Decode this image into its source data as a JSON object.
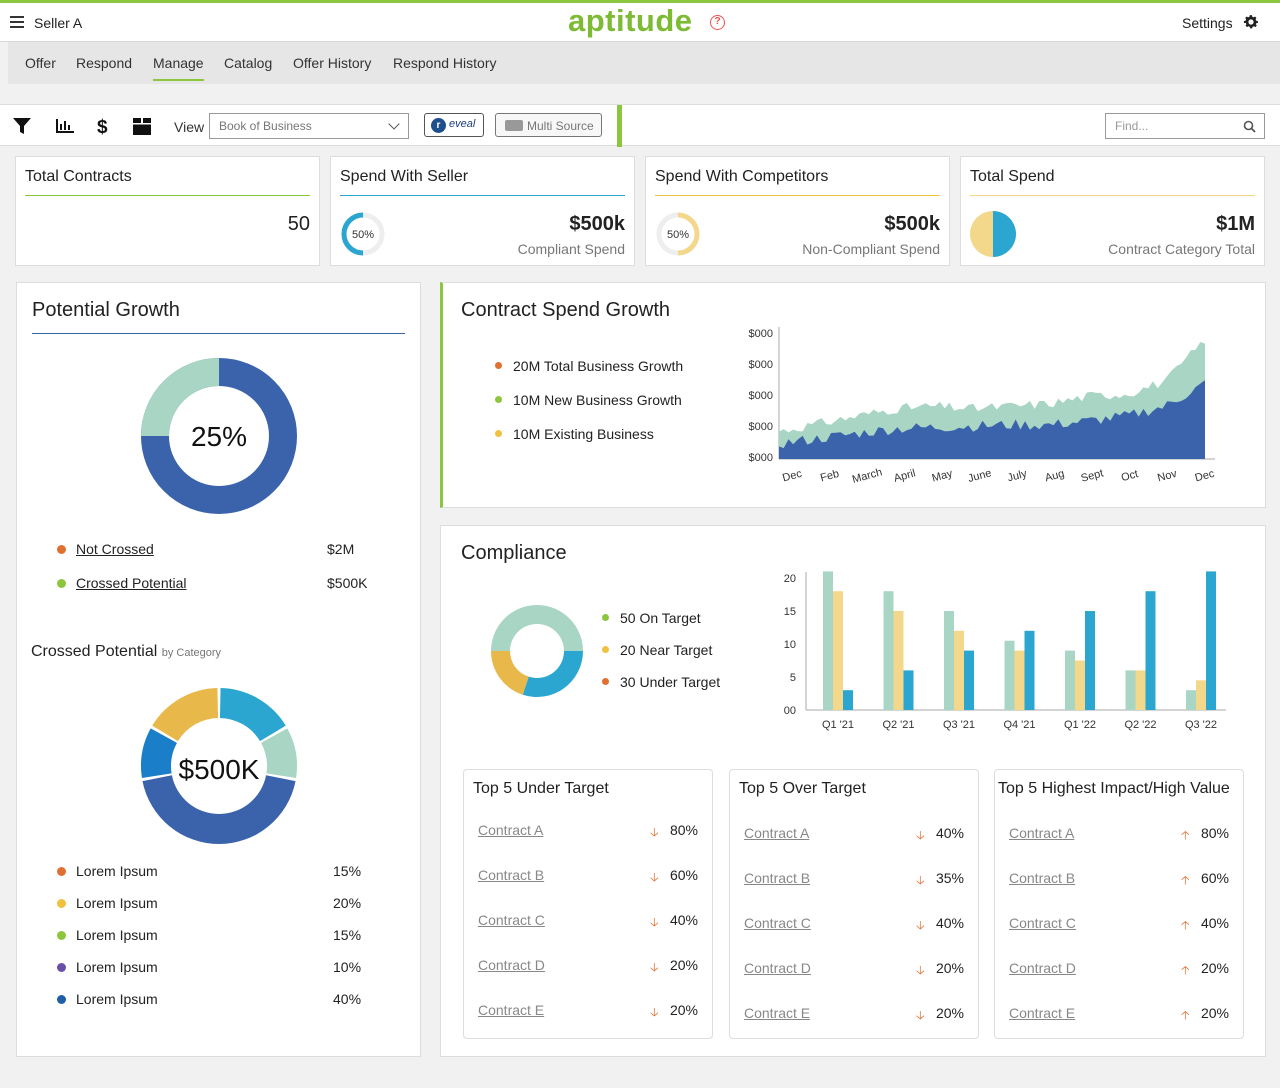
{
  "header": {
    "user": "Seller A",
    "logo": "aptitude",
    "help": "?",
    "settings": "Settings",
    "gear_icon": "gear-icon",
    "menu_icon": "hamburger-icon"
  },
  "nav": {
    "items": [
      "Offer",
      "Respond",
      "Manage",
      "Catalog",
      "Offer History",
      "Respond History"
    ],
    "active": "Manage"
  },
  "toolbar": {
    "icons": [
      "filter-icon",
      "bar-chart-icon",
      "dollar-icon",
      "box-icon"
    ],
    "view_label": "View",
    "view_value": "Book of Business",
    "reveal_label": "eveal",
    "reveal_mark": "r",
    "multi_source_label": "Multi Source",
    "find_placeholder": "Find..."
  },
  "kpis": {
    "total_contracts": {
      "title": "Total Contracts",
      "value": "50"
    },
    "spend_seller": {
      "title": "Spend With Seller",
      "value": "$500k",
      "sub": "Compliant Spend",
      "ring_label": "50%",
      "ring_pct": 50
    },
    "spend_competitors": {
      "title": "Spend With Competitors",
      "value": "$500k",
      "sub": "Non-Compliant Spend",
      "ring_label": "50%",
      "ring_pct": 50
    },
    "total_spend": {
      "title": "Total Spend",
      "value": "$1M",
      "sub": "Contract Category Total"
    }
  },
  "potential_growth": {
    "title": "Potential Growth",
    "center": "25%",
    "pct": 25,
    "legend": [
      {
        "label": "Not Crossed",
        "value": "$2M",
        "color": "#e07030"
      },
      {
        "label": "Crossed Potential",
        "value": "$500K",
        "color": "#8cc63f"
      }
    ],
    "sub_title": "Crossed Potential",
    "sub_title_small": "by Category",
    "sub_center": "$500K",
    "categories": [
      {
        "label": "Lorem Ipsum",
        "value": "15%",
        "color": "#e07030"
      },
      {
        "label": "Lorem Ipsum",
        "value": "20%",
        "color": "#f0c040"
      },
      {
        "label": "Lorem Ipsum",
        "value": "15%",
        "color": "#8cc63f"
      },
      {
        "label": "Lorem Ipsum",
        "value": "10%",
        "color": "#6a4fa8"
      },
      {
        "label": "Lorem Ipsum",
        "value": "40%",
        "color": "#1f5fa8"
      }
    ]
  },
  "contract_spend": {
    "title": "Contract Spend Growth",
    "legend": [
      {
        "label": "20M Total Business Growth",
        "color": "#e07030"
      },
      {
        "label": "10M New Business Growth",
        "color": "#8cc63f"
      },
      {
        "label": "10M Existing Business",
        "color": "#f0c040"
      }
    ],
    "y_ticks": [
      "$000",
      "$000",
      "$000",
      "$000",
      "$000"
    ],
    "x_ticks": [
      "Dec",
      "Feb",
      "March",
      "April",
      "May",
      "June",
      "July",
      "Aug",
      "Sept",
      "Oct",
      "Nov",
      "Dec"
    ]
  },
  "compliance": {
    "title": "Compliance",
    "legend": [
      {
        "label": "50 On Target",
        "color": "#8cc63f",
        "pct": 50
      },
      {
        "label": "20 Near Target",
        "color": "#f0c040",
        "pct": 20
      },
      {
        "label": "30 Under Target",
        "color": "#e07030",
        "pct": 30
      }
    ],
    "tables": [
      {
        "title": "Top 5 Under Target",
        "dir": "down",
        "rows": [
          {
            "name": "Contract A",
            "pct": "80%"
          },
          {
            "name": "Contract B",
            "pct": "60%"
          },
          {
            "name": "Contract C",
            "pct": "40%"
          },
          {
            "name": "Contract D",
            "pct": "20%"
          },
          {
            "name": "Contract E",
            "pct": "20%"
          }
        ]
      },
      {
        "title": "Top 5 Over Target",
        "dir": "down",
        "rows": [
          {
            "name": "Contract A",
            "pct": "40%"
          },
          {
            "name": "Contract B",
            "pct": "35%"
          },
          {
            "name": "Contract C",
            "pct": "40%"
          },
          {
            "name": "Contract D",
            "pct": "20%"
          },
          {
            "name": "Contract E",
            "pct": "20%"
          }
        ]
      },
      {
        "title": "Top 5 Highest Impact/High Value",
        "dir": "up",
        "rows": [
          {
            "name": "Contract A",
            "pct": "80%"
          },
          {
            "name": "Contract B",
            "pct": "60%"
          },
          {
            "name": "Contract C",
            "pct": "40%"
          },
          {
            "name": "Contract D",
            "pct": "20%"
          },
          {
            "name": "Contract E",
            "pct": "20%"
          }
        ]
      }
    ]
  },
  "chart_data": [
    {
      "type": "bar",
      "categories": [
        "Q1 '21",
        "Q2 '21",
        "Q3 '21",
        "Q4 '21",
        "Q1 '22",
        "Q2 '22",
        "Q3 '22"
      ],
      "y_ticks": [
        "20",
        "15",
        "10",
        "5",
        "00"
      ],
      "ylim": [
        0,
        20
      ],
      "series": [
        {
          "values": [
            21,
            18,
            15,
            10.5,
            9,
            6,
            3
          ],
          "color": "#a9d5c4"
        },
        {
          "values": [
            18,
            15,
            12,
            9,
            7.5,
            6,
            4.5
          ],
          "color": "#f3d88c"
        },
        {
          "values": [
            3,
            6,
            9,
            12,
            15,
            18,
            21
          ],
          "color": "#2aa6d0"
        }
      ]
    },
    {
      "type": "area",
      "y_ticks": [
        "$000",
        "$000",
        "$000",
        "$000",
        "$000"
      ],
      "categories": [
        "Dec",
        "Feb",
        "March",
        "April",
        "May",
        "June",
        "July",
        "Aug",
        "Sept",
        "Oct",
        "Nov",
        "Dec"
      ],
      "series": [
        {
          "values": [
            22,
            28,
            34,
            40,
            42,
            40,
            42,
            44,
            50,
            52,
            62,
            95
          ],
          "color": "#a9d5c4"
        },
        {
          "values": [
            12,
            16,
            20,
            24,
            25,
            26,
            27,
            27,
            30,
            34,
            42,
            60
          ],
          "color": "#3a63ab"
        }
      ]
    }
  ]
}
